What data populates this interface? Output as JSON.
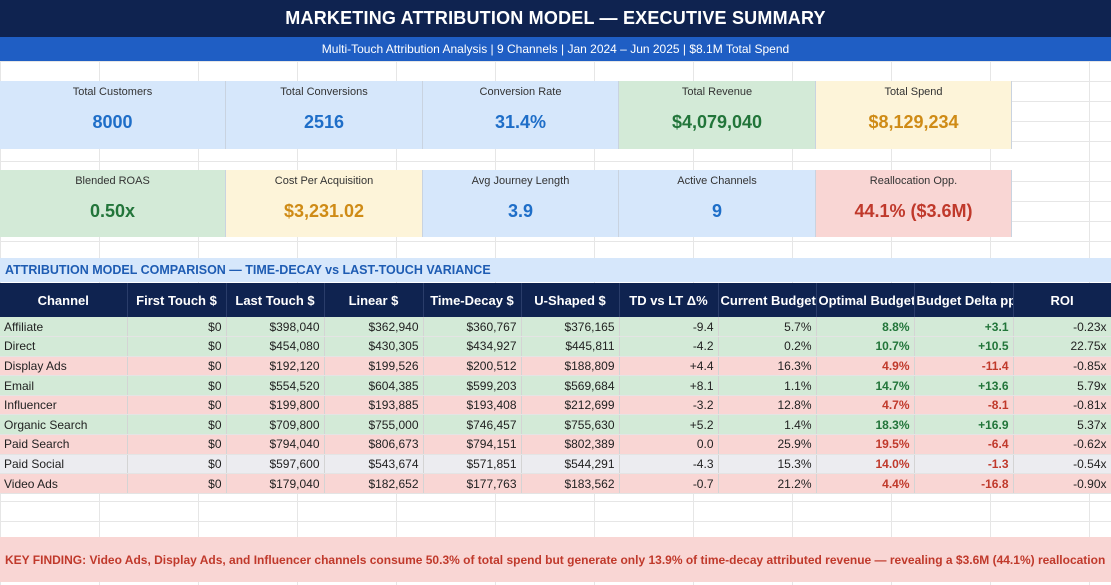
{
  "header": {
    "title": "MARKETING ATTRIBUTION MODEL — EXECUTIVE SUMMARY",
    "subtitle": "Multi-Touch Attribution Analysis | 9 Channels | Jan 2024 – Jun 2025 | $8.1M Total Spend"
  },
  "kpis_row1": [
    {
      "label": "Total Customers",
      "value": "8000",
      "tone": "blue"
    },
    {
      "label": "Total Conversions",
      "value": "2516",
      "tone": "blue"
    },
    {
      "label": "Conversion Rate",
      "value": "31.4%",
      "tone": "blue"
    },
    {
      "label": "Total Revenue",
      "value": "$4,079,040",
      "tone": "green"
    },
    {
      "label": "Total Spend",
      "value": "$8,129,234",
      "tone": "yellow"
    }
  ],
  "kpis_row2": [
    {
      "label": "Blended ROAS",
      "value": "0.50x",
      "tone": "green"
    },
    {
      "label": "Cost Per Acquisition",
      "value": "$3,231.02",
      "tone": "yellow"
    },
    {
      "label": "Avg Journey Length",
      "value": "3.9",
      "tone": "blue"
    },
    {
      "label": "Active Channels",
      "value": "9",
      "tone": "blue"
    },
    {
      "label": "Reallocation Opp.",
      "value": "44.1% ($3.6M)",
      "tone": "red"
    }
  ],
  "section_title": "ATTRIBUTION MODEL COMPARISON — TIME-DECAY vs LAST-TOUCH VARIANCE",
  "table": {
    "columns": [
      "Channel",
      "First Touch $",
      "Last Touch $",
      "Linear $",
      "Time-Decay $",
      "U-Shaped $",
      "TD vs LT Δ%",
      "Current Budget%",
      "Optimal Budget%",
      "Budget Delta pp",
      "ROI"
    ],
    "rows": [
      {
        "tone": "g",
        "cells": [
          "Affiliate",
          "$0",
          "$398,040",
          "$362,940",
          "$360,767",
          "$376,165",
          "-9.4",
          "5.7%",
          "8.8%",
          "+3.1",
          "-0.23x"
        ]
      },
      {
        "tone": "g",
        "cells": [
          "Direct",
          "$0",
          "$454,080",
          "$430,305",
          "$434,927",
          "$445,811",
          "-4.2",
          "0.2%",
          "10.7%",
          "+10.5",
          "22.75x"
        ]
      },
      {
        "tone": "r",
        "cells": [
          "Display Ads",
          "$0",
          "$192,120",
          "$199,526",
          "$200,512",
          "$188,809",
          "+4.4",
          "16.3%",
          "4.9%",
          "-11.4",
          "-0.85x"
        ]
      },
      {
        "tone": "g",
        "cells": [
          "Email",
          "$0",
          "$554,520",
          "$604,385",
          "$599,203",
          "$569,684",
          "+8.1",
          "1.1%",
          "14.7%",
          "+13.6",
          "5.79x"
        ]
      },
      {
        "tone": "r",
        "cells": [
          "Influencer",
          "$0",
          "$199,800",
          "$193,885",
          "$193,408",
          "$212,699",
          "-3.2",
          "12.8%",
          "4.7%",
          "-8.1",
          "-0.81x"
        ]
      },
      {
        "tone": "g",
        "cells": [
          "Organic Search",
          "$0",
          "$709,800",
          "$755,000",
          "$746,457",
          "$755,630",
          "+5.2",
          "1.4%",
          "18.3%",
          "+16.9",
          "5.37x"
        ]
      },
      {
        "tone": "r",
        "cells": [
          "Paid Search",
          "$0",
          "$794,040",
          "$806,673",
          "$794,151",
          "$802,389",
          "0.0",
          "25.9%",
          "19.5%",
          "-6.4",
          "-0.62x"
        ]
      },
      {
        "tone": "n",
        "cells": [
          "Paid Social",
          "$0",
          "$597,600",
          "$543,674",
          "$571,851",
          "$544,291",
          "-4.3",
          "15.3%",
          "14.0%",
          "-1.3",
          "-0.54x"
        ]
      },
      {
        "tone": "r",
        "cells": [
          "Video Ads",
          "$0",
          "$179,040",
          "$182,652",
          "$177,763",
          "$183,562",
          "-0.7",
          "21.2%",
          "4.4%",
          "-16.8",
          "-0.90x"
        ]
      }
    ]
  },
  "key_finding": "KEY FINDING:  Video Ads, Display Ads, and Influencer channels consume 50.3% of total spend but generate only 13.9% of time-decay attributed revenue — revealing a $3.6M (44.1%) reallocation"
}
